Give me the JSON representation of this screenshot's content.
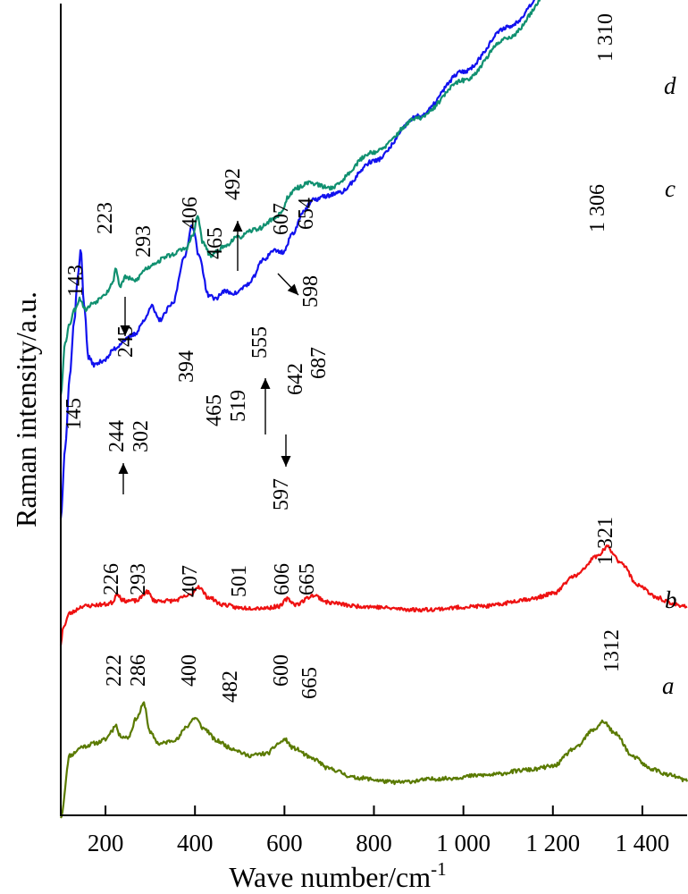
{
  "chart_data": {
    "type": "line",
    "title": "",
    "xlabel": "Wave number/cm",
    "xlabel_sup": "-1",
    "ylabel": "Raman intensity/a.u.",
    "xlim": [
      100,
      1500
    ],
    "x_ticks": [
      200,
      400,
      600,
      800,
      1000,
      1200,
      1400
    ],
    "x_tick_labels": [
      "200",
      "400",
      "600",
      "800",
      "1 000",
      "1 200",
      "1 400"
    ],
    "grid": false,
    "series_colors": {
      "a": "#5a7a00",
      "b": "#ee1111",
      "c": "#1111ee",
      "d": "#109070"
    },
    "series": [
      {
        "name": "a",
        "color": "#5a7a00",
        "noise": 2.2,
        "seed": 11,
        "base": 0,
        "points": [
          [
            100,
            0
          ],
          [
            120,
            70
          ],
          [
            150,
            80
          ],
          [
            180,
            84
          ],
          [
            200,
            88
          ],
          [
            215,
            98
          ],
          [
            222,
            105
          ],
          [
            232,
            92
          ],
          [
            250,
            90
          ],
          [
            270,
            112
          ],
          [
            286,
            128
          ],
          [
            300,
            95
          ],
          [
            320,
            83
          ],
          [
            360,
            88
          ],
          [
            380,
            102
          ],
          [
            400,
            112
          ],
          [
            420,
            100
          ],
          [
            450,
            86
          ],
          [
            482,
            78
          ],
          [
            520,
            70
          ],
          [
            560,
            72
          ],
          [
            590,
            84
          ],
          [
            600,
            88
          ],
          [
            620,
            78
          ],
          [
            665,
            66
          ],
          [
            700,
            55
          ],
          [
            760,
            45
          ],
          [
            850,
            40
          ],
          [
            950,
            44
          ],
          [
            1050,
            48
          ],
          [
            1150,
            54
          ],
          [
            1200,
            58
          ],
          [
            1250,
            78
          ],
          [
            1290,
            98
          ],
          [
            1312,
            108
          ],
          [
            1340,
            94
          ],
          [
            1380,
            68
          ],
          [
            1420,
            55
          ],
          [
            1460,
            48
          ],
          [
            1500,
            42
          ]
        ],
        "peak_labels": [
          {
            "x": 222,
            "label": "222"
          },
          {
            "x": 286,
            "label": "286"
          },
          {
            "x": 400,
            "label": "400"
          },
          {
            "x": 482,
            "label": "482"
          },
          {
            "x": 600,
            "label": "600"
          },
          {
            "x": 665,
            "label": "665"
          },
          {
            "x": 1312,
            "label": "1312"
          }
        ]
      },
      {
        "name": "b",
        "color": "#ee1111",
        "noise": 2.2,
        "seed": 23,
        "base": 0,
        "points": [
          [
            100,
            0
          ],
          [
            105,
            20
          ],
          [
            120,
            36
          ],
          [
            150,
            44
          ],
          [
            200,
            46
          ],
          [
            215,
            48
          ],
          [
            226,
            58
          ],
          [
            240,
            50
          ],
          [
            270,
            50
          ],
          [
            293,
            60
          ],
          [
            310,
            50
          ],
          [
            350,
            50
          ],
          [
            390,
            56
          ],
          [
            407,
            66
          ],
          [
            430,
            54
          ],
          [
            460,
            46
          ],
          [
            500,
            42
          ],
          [
            560,
            42
          ],
          [
            590,
            44
          ],
          [
            606,
            52
          ],
          [
            625,
            46
          ],
          [
            665,
            56
          ],
          [
            700,
            48
          ],
          [
            760,
            44
          ],
          [
            900,
            40
          ],
          [
            1050,
            44
          ],
          [
            1150,
            52
          ],
          [
            1200,
            58
          ],
          [
            1250,
            78
          ],
          [
            1300,
            100
          ],
          [
            1321,
            110
          ],
          [
            1350,
            94
          ],
          [
            1390,
            68
          ],
          [
            1430,
            54
          ],
          [
            1470,
            46
          ],
          [
            1500,
            44
          ]
        ],
        "peak_labels": [
          {
            "x": 226,
            "label": "226"
          },
          {
            "x": 293,
            "label": "293"
          },
          {
            "x": 407,
            "label": "407"
          },
          {
            "x": 501,
            "label": "501"
          },
          {
            "x": 606,
            "label": "606"
          },
          {
            "x": 665,
            "label": "665"
          },
          {
            "x": 1321,
            "label": "1 321"
          }
        ]
      },
      {
        "name": "c",
        "color": "#1111ee",
        "noise": 2.4,
        "seed": 37,
        "base": 0,
        "points": [
          [
            100,
            0
          ],
          [
            110,
            80
          ],
          [
            120,
            160
          ],
          [
            130,
            220
          ],
          [
            138,
            270
          ],
          [
            145,
            300
          ],
          [
            152,
            240
          ],
          [
            162,
            180
          ],
          [
            175,
            172
          ],
          [
            200,
            178
          ],
          [
            220,
            190
          ],
          [
            244,
            200
          ],
          [
            265,
            206
          ],
          [
            285,
            220
          ],
          [
            302,
            238
          ],
          [
            320,
            222
          ],
          [
            350,
            240
          ],
          [
            375,
            290
          ],
          [
            394,
            328
          ],
          [
            410,
            292
          ],
          [
            430,
            250
          ],
          [
            445,
            246
          ],
          [
            465,
            254
          ],
          [
            490,
            252
          ],
          [
            519,
            262
          ],
          [
            555,
            290
          ],
          [
            575,
            300
          ],
          [
            597,
            298
          ],
          [
            620,
            320
          ],
          [
            642,
            344
          ],
          [
            665,
            356
          ],
          [
            687,
            360
          ],
          [
            720,
            364
          ],
          [
            800,
            400
          ],
          [
            900,
            450
          ],
          [
            1000,
            500
          ],
          [
            1100,
            550
          ],
          [
            1200,
            600
          ],
          [
            1306,
            660
          ],
          [
            1400,
            718
          ],
          [
            1470,
            752
          ],
          [
            1500,
            768
          ]
        ],
        "peak_labels": [
          {
            "x": 145,
            "label": "145"
          },
          {
            "x": 244,
            "label": "244"
          },
          {
            "x": 302,
            "label": "302"
          },
          {
            "x": 394,
            "label": "394"
          },
          {
            "x": 465,
            "label": "465"
          },
          {
            "x": 519,
            "label": "519"
          },
          {
            "x": 555,
            "label": "555"
          },
          {
            "x": 597,
            "label": "597"
          },
          {
            "x": 642,
            "label": "642"
          },
          {
            "x": 687,
            "label": "687"
          },
          {
            "x": 1306,
            "label": "1 306"
          }
        ]
      },
      {
        "name": "d",
        "color": "#109070",
        "noise": 2.4,
        "seed": 53,
        "base": 0,
        "points": [
          [
            100,
            0
          ],
          [
            110,
            60
          ],
          [
            120,
            80
          ],
          [
            130,
            95
          ],
          [
            143,
            108
          ],
          [
            155,
            96
          ],
          [
            175,
            104
          ],
          [
            200,
            114
          ],
          [
            215,
            124
          ],
          [
            223,
            142
          ],
          [
            232,
            122
          ],
          [
            245,
            132
          ],
          [
            265,
            128
          ],
          [
            293,
            142
          ],
          [
            310,
            148
          ],
          [
            340,
            156
          ],
          [
            380,
            164
          ],
          [
            395,
            178
          ],
          [
            406,
            200
          ],
          [
            418,
            170
          ],
          [
            435,
            156
          ],
          [
            465,
            166
          ],
          [
            492,
            176
          ],
          [
            540,
            186
          ],
          [
            580,
            198
          ],
          [
            598,
            208
          ],
          [
            607,
            222
          ],
          [
            630,
            232
          ],
          [
            654,
            238
          ],
          [
            700,
            232
          ],
          [
            800,
            272
          ],
          [
            900,
            310
          ],
          [
            1000,
            352
          ],
          [
            1100,
            400
          ],
          [
            1200,
            454
          ],
          [
            1260,
            500
          ],
          [
            1290,
            530
          ],
          [
            1310,
            544
          ],
          [
            1340,
            524
          ],
          [
            1380,
            488
          ],
          [
            1420,
            480
          ],
          [
            1460,
            486
          ],
          [
            1500,
            496
          ]
        ],
        "peak_labels": [
          {
            "x": 143,
            "label": "143"
          },
          {
            "x": 223,
            "label": "223"
          },
          {
            "x": 245,
            "label": "245"
          },
          {
            "x": 293,
            "label": "293"
          },
          {
            "x": 406,
            "label": "406"
          },
          {
            "x": 465,
            "label": "465"
          },
          {
            "x": 492,
            "label": "492"
          },
          {
            "x": 598,
            "label": "598"
          },
          {
            "x": 607,
            "label": "607"
          },
          {
            "x": 654,
            "label": "654"
          },
          {
            "x": 1310,
            "label": "1 310"
          }
        ]
      }
    ]
  }
}
